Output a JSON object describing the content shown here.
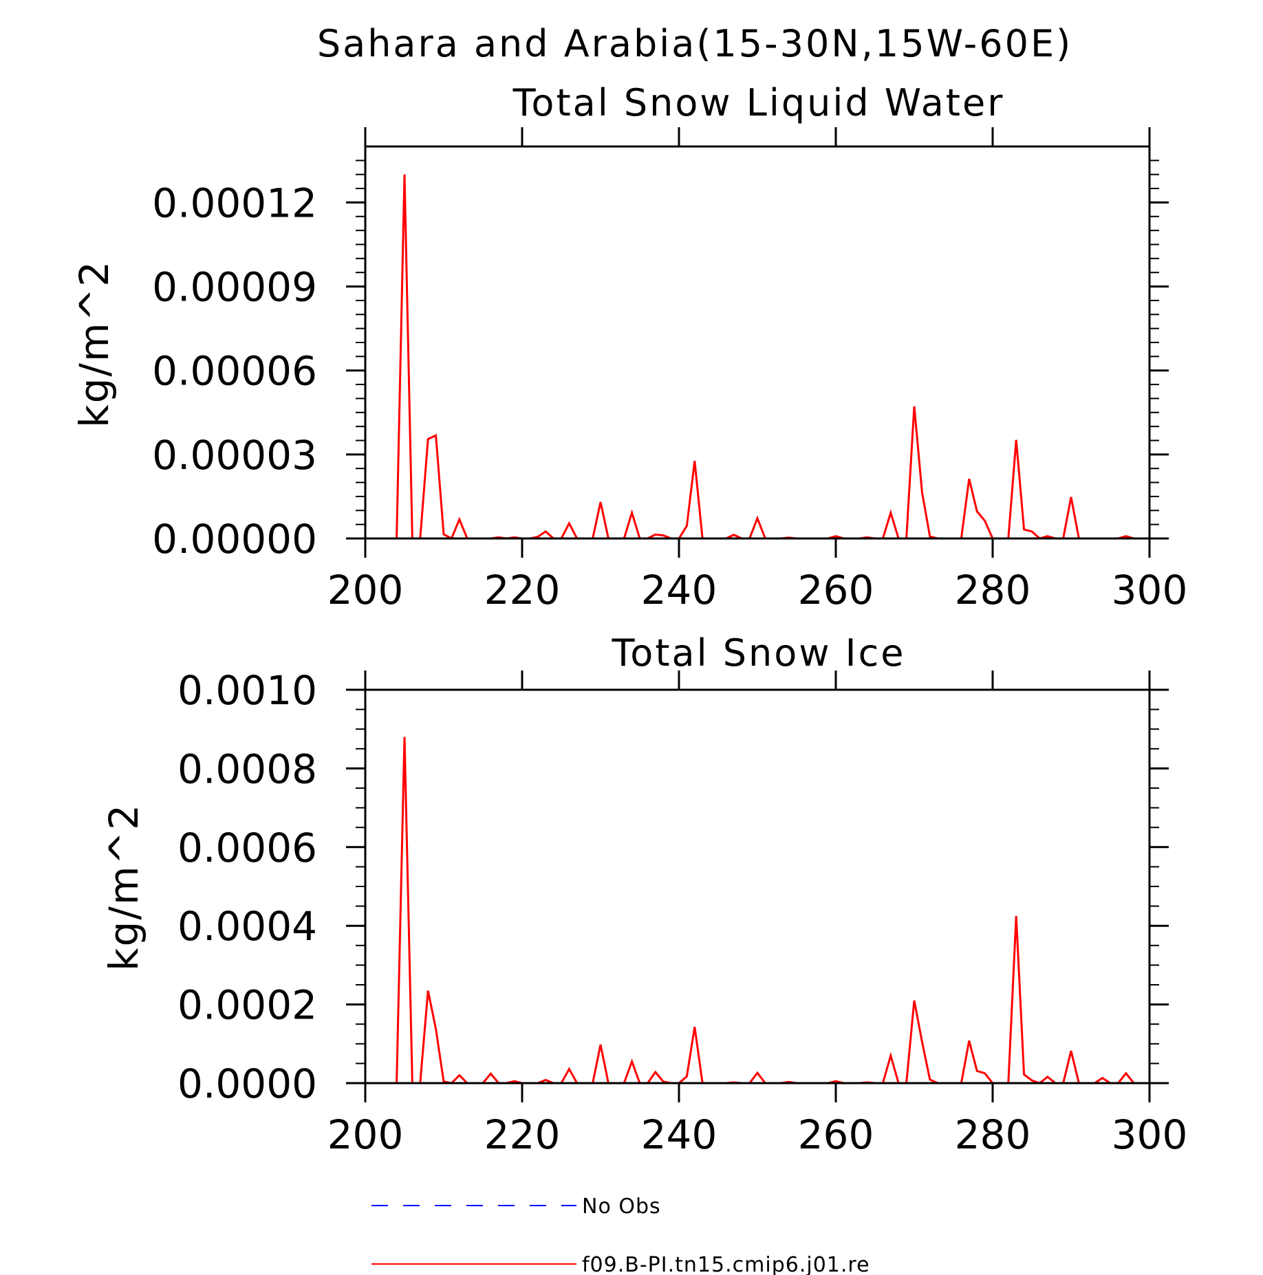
{
  "figure_title": "Sahara and Arabia(15-30N,15W-60E)",
  "chart_data": [
    {
      "type": "line",
      "title": "Total Snow Liquid Water",
      "xlabel": "",
      "ylabel": "kg/m^2",
      "xlim": [
        200,
        300
      ],
      "ylim": [
        0,
        0.00014
      ],
      "xticks": [
        200,
        220,
        240,
        260,
        280,
        300
      ],
      "xtick_labels": [
        "200",
        "220",
        "240",
        "260",
        "280",
        "300"
      ],
      "yticks": [
        0,
        3e-05,
        6e-05,
        9e-05,
        0.00012
      ],
      "ytick_labels": [
        "0.00000",
        "0.00003",
        "0.00006",
        "0.00009",
        "0.00012"
      ],
      "series": [
        {
          "name": "f09.B-PI.tn15.cmip6.j01.re",
          "color": "#ff0000",
          "x": [
            200,
            201,
            202,
            203,
            204,
            205,
            206,
            207,
            208,
            209,
            210,
            211,
            212,
            213,
            214,
            215,
            216,
            217,
            218,
            219,
            220,
            221,
            222,
            223,
            224,
            225,
            226,
            227,
            228,
            229,
            230,
            231,
            232,
            233,
            234,
            235,
            236,
            237,
            238,
            239,
            240,
            241,
            242,
            243,
            244,
            245,
            246,
            247,
            248,
            249,
            250,
            251,
            252,
            253,
            254,
            255,
            256,
            257,
            258,
            259,
            260,
            261,
            262,
            263,
            264,
            265,
            266,
            267,
            268,
            269,
            270,
            271,
            272,
            273,
            274,
            275,
            276,
            277,
            278,
            279,
            280,
            281,
            282,
            283,
            284,
            285,
            286,
            287,
            288,
            289,
            290,
            291,
            292,
            293,
            294,
            295,
            296,
            297,
            298,
            299
          ],
          "y": [
            0,
            0,
            0,
            0,
            0,
            0.00013,
            0,
            0,
            3.55e-05,
            3.68e-05,
            1.5e-06,
            0,
            6.8e-06,
            0,
            0,
            0,
            0,
            4e-07,
            0,
            4e-07,
            0,
            0,
            6e-07,
            2.5e-06,
            0,
            0,
            5.4e-06,
            0,
            0,
            0,
            1.3e-05,
            0,
            0,
            0,
            9.2e-06,
            0,
            0,
            1.4e-06,
            1.1e-06,
            0,
            0,
            4.5e-06,
            2.77e-05,
            0,
            0,
            0,
            0,
            1.3e-06,
            0,
            0,
            7.2e-06,
            0,
            0,
            0,
            3e-07,
            0,
            0,
            0,
            0,
            0,
            8e-07,
            0,
            0,
            0,
            4e-07,
            0,
            0,
            9.2e-06,
            0,
            0,
            4.72e-05,
            1.65e-05,
            7e-07,
            0,
            0,
            0,
            0,
            2.13e-05,
            9.7e-06,
            6.3e-06,
            0,
            0,
            0,
            3.52e-05,
            3.2e-06,
            2.5e-06,
            0,
            8e-07,
            0,
            0,
            1.48e-05,
            0,
            0,
            0,
            0,
            0,
            0,
            8e-07,
            0,
            0
          ]
        }
      ]
    },
    {
      "type": "line",
      "title": "Total Snow Ice",
      "xlabel": "",
      "ylabel": "kg/m^2",
      "xlim": [
        200,
        300
      ],
      "ylim": [
        0,
        0.001
      ],
      "xticks": [
        200,
        220,
        240,
        260,
        280,
        300
      ],
      "xtick_labels": [
        "200",
        "220",
        "240",
        "260",
        "280",
        "300"
      ],
      "yticks": [
        0,
        0.0002,
        0.0004,
        0.0006,
        0.0008,
        0.001
      ],
      "ytick_labels": [
        "0.0000",
        "0.0002",
        "0.0004",
        "0.0006",
        "0.0008",
        "0.0010"
      ],
      "series": [
        {
          "name": "f09.B-PI.tn15.cmip6.j01.re",
          "color": "#ff0000",
          "x": [
            200,
            201,
            202,
            203,
            204,
            205,
            206,
            207,
            208,
            209,
            210,
            211,
            212,
            213,
            214,
            215,
            216,
            217,
            218,
            219,
            220,
            221,
            222,
            223,
            224,
            225,
            226,
            227,
            228,
            229,
            230,
            231,
            232,
            233,
            234,
            235,
            236,
            237,
            238,
            239,
            240,
            241,
            242,
            243,
            244,
            245,
            246,
            247,
            248,
            249,
            250,
            251,
            252,
            253,
            254,
            255,
            256,
            257,
            258,
            259,
            260,
            261,
            262,
            263,
            264,
            265,
            266,
            267,
            268,
            269,
            270,
            271,
            272,
            273,
            274,
            275,
            276,
            277,
            278,
            279,
            280,
            281,
            282,
            283,
            284,
            285,
            286,
            287,
            288,
            289,
            290,
            291,
            292,
            293,
            294,
            295,
            296,
            297,
            298,
            299
          ],
          "y": [
            0,
            0,
            0,
            0,
            0,
            0.00088,
            0,
            0,
            0.000235,
            0.000138,
            4e-06,
            0,
            2e-05,
            0,
            0,
            0,
            2.4e-05,
            0,
            0,
            5e-06,
            0,
            0,
            0,
            8e-06,
            0,
            0,
            3.6e-05,
            0,
            0,
            0,
            9.8e-05,
            0,
            0,
            0,
            5.5e-05,
            0,
            0,
            2.8e-05,
            4e-06,
            0,
            0,
            1.7e-05,
            0.000143,
            0,
            0,
            0,
            0,
            2e-06,
            0,
            0,
            2.6e-05,
            0,
            0,
            0,
            3e-06,
            0,
            0,
            0,
            0,
            0,
            5e-06,
            0,
            0,
            0,
            2e-06,
            0,
            0,
            7e-05,
            0,
            0,
            0.00021,
            0.000105,
            9e-06,
            0,
            0,
            0,
            0,
            0.000108,
            3.1e-05,
            2.5e-05,
            0,
            0,
            0,
            0.000425,
            2.2e-05,
            7e-06,
            0,
            1.6e-05,
            0,
            0,
            8.2e-05,
            0,
            0,
            0,
            1.3e-05,
            0,
            0,
            2.5e-05,
            0,
            0
          ]
        }
      ]
    }
  ],
  "legend": [
    {
      "label": "No Obs",
      "color": "#0000ff",
      "style": "dashed"
    },
    {
      "label": "f09.B-PI.tn15.cmip6.j01.re",
      "color": "#ff0000",
      "style": "solid"
    }
  ]
}
